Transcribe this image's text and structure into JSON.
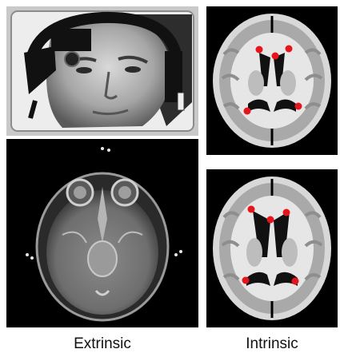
{
  "captions": {
    "left": "Extrinsic",
    "right": "Intrinsic"
  },
  "panels": {
    "photo": {
      "description_icon": "head-frame-photo"
    },
    "mri_axial": {
      "description_icon": "mri-axial-scan"
    },
    "atlas_top": {
      "description_icon": "brain-slice-with-landmarks"
    },
    "atlas_bottom": {
      "description_icon": "brain-slice-with-landmarks"
    }
  },
  "colors": {
    "landmark": "#e8141c",
    "scan_background": "#000000",
    "photo_frame": "#c9c9c9"
  }
}
